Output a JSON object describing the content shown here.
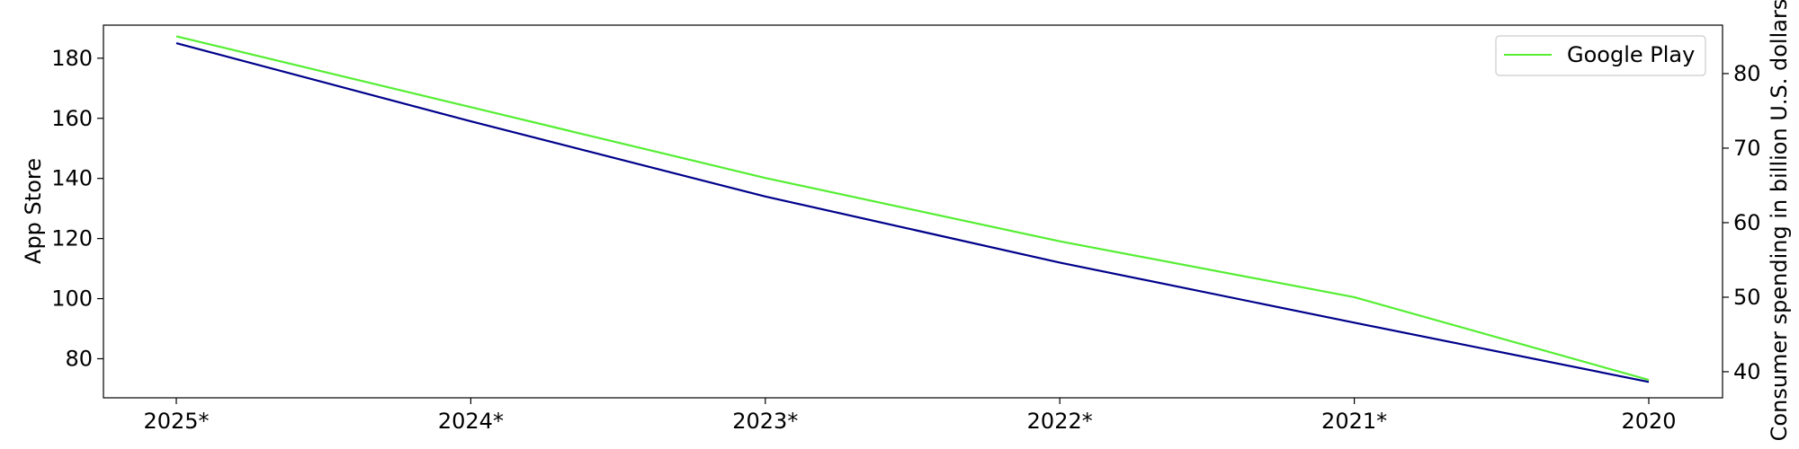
{
  "chart_data": {
    "type": "line",
    "title": "",
    "xlabel": "",
    "categories": [
      "2025*",
      "2024*",
      "2023*",
      "2022*",
      "2021*",
      "2020"
    ],
    "left_axis": {
      "label": "App Store",
      "ylim": [
        67,
        191
      ],
      "ticks": [
        80,
        100,
        120,
        140,
        160,
        180
      ]
    },
    "right_axis": {
      "label": "Consumer spending in billion U.S. dollars",
      "ylim": [
        36.5,
        86.5
      ],
      "ticks": [
        40,
        50,
        60,
        70,
        80
      ]
    },
    "series": [
      {
        "name": "App Store",
        "axis": "left",
        "color": "#00008b",
        "values": [
          185,
          159,
          134,
          112,
          92,
          72.3
        ]
      },
      {
        "name": "Google Play",
        "axis": "right",
        "color": "#55ee33",
        "values": [
          85.0,
          75.5,
          66.0,
          57.5,
          50.0,
          38.9
        ]
      }
    ],
    "legend": {
      "entries": [
        "Google Play"
      ],
      "placement": "top-right"
    },
    "grid": false
  }
}
